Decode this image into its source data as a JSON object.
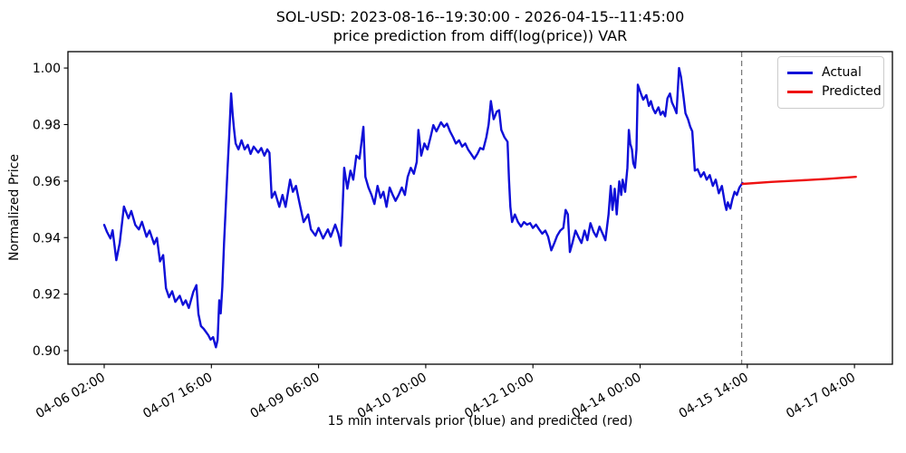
{
  "chart_data": {
    "type": "line",
    "title_line1": "SOL-USD: 2023-08-16--19:30:00 - 2026-04-15--11:45:00",
    "title_line2": "price prediction from diff(log(price)) VAR",
    "xlabel": "15 min intervals prior (blue) and predicted (red)",
    "ylabel": "Normalized Price",
    "grid": false,
    "legend_position": "upper right",
    "x_unit": "hours since 04-06 02:00 (data sampled at 15 min intervals)",
    "xlim_hours": [
      -12.85,
      279.45
    ],
    "ylim": [
      0.8952,
      1.0058
    ],
    "x_ticks": [
      {
        "hours": 0,
        "label": "04-06 02:00"
      },
      {
        "hours": 38,
        "label": "04-07 16:00"
      },
      {
        "hours": 76,
        "label": "04-09 06:00"
      },
      {
        "hours": 114,
        "label": "04-10 20:00"
      },
      {
        "hours": 152,
        "label": "04-12 10:00"
      },
      {
        "hours": 190,
        "label": "04-14 00:00"
      },
      {
        "hours": 228,
        "label": "04-15 14:00"
      },
      {
        "hours": 266,
        "label": "04-17 04:00"
      }
    ],
    "y_ticks": [
      {
        "value": 0.9,
        "label": "0.90"
      },
      {
        "value": 0.92,
        "label": "0.92"
      },
      {
        "value": 0.94,
        "label": "0.94"
      },
      {
        "value": 0.96,
        "label": "0.96"
      },
      {
        "value": 0.98,
        "label": "0.98"
      },
      {
        "value": 1.0,
        "label": "1.00"
      }
    ],
    "vline": {
      "hours": 226.0,
      "color": "#7a7a7a",
      "style": "dashed",
      "meaning": "prediction start 04-15 11:45"
    },
    "series": [
      {
        "name": "Actual",
        "color": "#0f0fd8",
        "points": [
          [
            0,
            0.9445
          ],
          [
            1,
            0.942
          ],
          [
            2.2,
            0.9397
          ],
          [
            3,
            0.9426
          ],
          [
            4.3,
            0.932
          ],
          [
            5.5,
            0.938
          ],
          [
            7,
            0.951
          ],
          [
            8.6,
            0.9468
          ],
          [
            9.6,
            0.9494
          ],
          [
            11,
            0.9445
          ],
          [
            12.3,
            0.9429
          ],
          [
            13.4,
            0.9456
          ],
          [
            15,
            0.9403
          ],
          [
            16.1,
            0.9425
          ],
          [
            17.7,
            0.9377
          ],
          [
            18.7,
            0.9399
          ],
          [
            19.8,
            0.9316
          ],
          [
            20.9,
            0.9338
          ],
          [
            21.9,
            0.9221
          ],
          [
            23,
            0.9189
          ],
          [
            24.1,
            0.921
          ],
          [
            25.2,
            0.9173
          ],
          [
            26.8,
            0.9194
          ],
          [
            27.9,
            0.9162
          ],
          [
            28.9,
            0.9178
          ],
          [
            30,
            0.9151
          ],
          [
            31.6,
            0.9208
          ],
          [
            32.7,
            0.9232
          ],
          [
            33.4,
            0.913
          ],
          [
            34.3,
            0.9087
          ],
          [
            35.3,
            0.9077
          ],
          [
            36.9,
            0.9055
          ],
          [
            37.7,
            0.9039
          ],
          [
            38.6,
            0.9048
          ],
          [
            39.1,
            0.903
          ],
          [
            39.6,
            0.9012
          ],
          [
            40.2,
            0.9038
          ],
          [
            40.8,
            0.9178
          ],
          [
            41.3,
            0.9132
          ],
          [
            41.9,
            0.9225
          ],
          [
            42.5,
            0.938
          ],
          [
            43.1,
            0.951
          ],
          [
            43.7,
            0.964
          ],
          [
            44.3,
            0.9755
          ],
          [
            45,
            0.991
          ],
          [
            45.5,
            0.984
          ],
          [
            46,
            0.9787
          ],
          [
            46.6,
            0.9733
          ],
          [
            47.6,
            0.9712
          ],
          [
            48.7,
            0.9744
          ],
          [
            49.8,
            0.9712
          ],
          [
            50.9,
            0.9728
          ],
          [
            51.9,
            0.9696
          ],
          [
            53,
            0.9722
          ],
          [
            54.6,
            0.9701
          ],
          [
            55.7,
            0.9717
          ],
          [
            56.8,
            0.969
          ],
          [
            57.8,
            0.9712
          ],
          [
            58.6,
            0.97
          ],
          [
            59.4,
            0.9541
          ],
          [
            60.5,
            0.9562
          ],
          [
            62.1,
            0.9509
          ],
          [
            63.2,
            0.9551
          ],
          [
            64.3,
            0.9509
          ],
          [
            65.9,
            0.9605
          ],
          [
            66.9,
            0.9562
          ],
          [
            68,
            0.9583
          ],
          [
            69.1,
            0.953
          ],
          [
            70.7,
            0.9455
          ],
          [
            72.3,
            0.9482
          ],
          [
            73.3,
            0.9429
          ],
          [
            74.9,
            0.9407
          ],
          [
            76,
            0.9434
          ],
          [
            77.6,
            0.9397
          ],
          [
            79.3,
            0.9429
          ],
          [
            80.3,
            0.9403
          ],
          [
            81.9,
            0.9446
          ],
          [
            83,
            0.9414
          ],
          [
            83.9,
            0.9371
          ],
          [
            84.5,
            0.95
          ],
          [
            85.1,
            0.9647
          ],
          [
            86.2,
            0.9573
          ],
          [
            87.3,
            0.9637
          ],
          [
            88.3,
            0.9605
          ],
          [
            89.4,
            0.969
          ],
          [
            90.5,
            0.9679
          ],
          [
            91.9,
            0.9792
          ],
          [
            92.6,
            0.9615
          ],
          [
            93.7,
            0.9577
          ],
          [
            94.8,
            0.9551
          ],
          [
            95.8,
            0.9519
          ],
          [
            96.9,
            0.9583
          ],
          [
            98,
            0.9541
          ],
          [
            99,
            0.9562
          ],
          [
            100.1,
            0.9509
          ],
          [
            101.2,
            0.9577
          ],
          [
            102.3,
            0.9551
          ],
          [
            103.3,
            0.953
          ],
          [
            104.4,
            0.9551
          ],
          [
            105.5,
            0.9577
          ],
          [
            106.6,
            0.9551
          ],
          [
            107.6,
            0.9615
          ],
          [
            108.7,
            0.9647
          ],
          [
            109.8,
            0.9626
          ],
          [
            110.8,
            0.9668
          ],
          [
            111.4,
            0.9781
          ],
          [
            112.4,
            0.969
          ],
          [
            113.5,
            0.9733
          ],
          [
            114.6,
            0.9712
          ],
          [
            115.7,
            0.9755
          ],
          [
            116.7,
            0.9798
          ],
          [
            117.8,
            0.9776
          ],
          [
            119.4,
            0.9808
          ],
          [
            120.5,
            0.9792
          ],
          [
            121.5,
            0.9803
          ],
          [
            122.6,
            0.9776
          ],
          [
            123.7,
            0.9755
          ],
          [
            124.7,
            0.9733
          ],
          [
            125.8,
            0.9744
          ],
          [
            126.9,
            0.9722
          ],
          [
            128,
            0.9733
          ],
          [
            129,
            0.9712
          ],
          [
            130.1,
            0.9696
          ],
          [
            131.2,
            0.9679
          ],
          [
            132.3,
            0.9696
          ],
          [
            133.3,
            0.9717
          ],
          [
            134.4,
            0.9712
          ],
          [
            135.5,
            0.9755
          ],
          [
            136.3,
            0.98
          ],
          [
            137.1,
            0.9883
          ],
          [
            138.1,
            0.9819
          ],
          [
            139.2,
            0.9846
          ],
          [
            140,
            0.9851
          ],
          [
            140.8,
            0.9781
          ],
          [
            141.9,
            0.9755
          ],
          [
            143,
            0.9739
          ],
          [
            143.5,
            0.9605
          ],
          [
            144,
            0.9509
          ],
          [
            144.6,
            0.9455
          ],
          [
            145.6,
            0.9482
          ],
          [
            146.7,
            0.9455
          ],
          [
            147.8,
            0.9439
          ],
          [
            148.8,
            0.9455
          ],
          [
            149.9,
            0.9446
          ],
          [
            151,
            0.9451
          ],
          [
            152,
            0.9434
          ],
          [
            153.1,
            0.9446
          ],
          [
            154.2,
            0.9429
          ],
          [
            155.3,
            0.9414
          ],
          [
            156.4,
            0.9425
          ],
          [
            157.4,
            0.9403
          ],
          [
            158.5,
            0.9355
          ],
          [
            159.6,
            0.9381
          ],
          [
            160.6,
            0.9407
          ],
          [
            161.7,
            0.9425
          ],
          [
            162.8,
            0.9434
          ],
          [
            163.6,
            0.9498
          ],
          [
            164.4,
            0.9482
          ],
          [
            165.1,
            0.9349
          ],
          [
            166,
            0.9381
          ],
          [
            167.1,
            0.9425
          ],
          [
            168.1,
            0.9403
          ],
          [
            169.2,
            0.9381
          ],
          [
            170.3,
            0.9425
          ],
          [
            171.3,
            0.9391
          ],
          [
            172.4,
            0.9451
          ],
          [
            173.5,
            0.942
          ],
          [
            174.5,
            0.9403
          ],
          [
            175.6,
            0.9439
          ],
          [
            176.7,
            0.9414
          ],
          [
            177.7,
            0.9391
          ],
          [
            178.8,
            0.9482
          ],
          [
            179.6,
            0.9583
          ],
          [
            180.2,
            0.9498
          ],
          [
            181,
            0.9573
          ],
          [
            181.7,
            0.9482
          ],
          [
            182.6,
            0.9599
          ],
          [
            183.3,
            0.9551
          ],
          [
            183.8,
            0.9605
          ],
          [
            184.7,
            0.9562
          ],
          [
            185.5,
            0.9647
          ],
          [
            186,
            0.9781
          ],
          [
            186.5,
            0.9733
          ],
          [
            187.1,
            0.9712
          ],
          [
            187.6,
            0.9663
          ],
          [
            188.2,
            0.9647
          ],
          [
            188.7,
            0.9712
          ],
          [
            189.2,
            0.9941
          ],
          [
            190.1,
            0.9915
          ],
          [
            191.1,
            0.9888
          ],
          [
            192.2,
            0.9904
          ],
          [
            193.1,
            0.9866
          ],
          [
            193.8,
            0.9883
          ],
          [
            194.6,
            0.9856
          ],
          [
            195.4,
            0.984
          ],
          [
            196.5,
            0.9861
          ],
          [
            197.3,
            0.9835
          ],
          [
            198.1,
            0.9846
          ],
          [
            198.9,
            0.9829
          ],
          [
            199.7,
            0.9893
          ],
          [
            200.6,
            0.991
          ],
          [
            201.3,
            0.9878
          ],
          [
            202.1,
            0.9861
          ],
          [
            202.9,
            0.984
          ],
          [
            203.8,
            1.0
          ],
          [
            204.5,
            0.9968
          ],
          [
            205.3,
            0.9904
          ],
          [
            206.1,
            0.984
          ],
          [
            207,
            0.9819
          ],
          [
            207.8,
            0.9792
          ],
          [
            208.5,
            0.9776
          ],
          [
            209.4,
            0.9637
          ],
          [
            210.4,
            0.9642
          ],
          [
            211.5,
            0.9615
          ],
          [
            212.6,
            0.9631
          ],
          [
            213.6,
            0.9605
          ],
          [
            214.7,
            0.9621
          ],
          [
            215.8,
            0.9583
          ],
          [
            216.8,
            0.9605
          ],
          [
            217.9,
            0.9557
          ],
          [
            219,
            0.9583
          ],
          [
            220.1,
            0.9519
          ],
          [
            220.6,
            0.9498
          ],
          [
            221.1,
            0.9525
          ],
          [
            222,
            0.9503
          ],
          [
            222.7,
            0.9535
          ],
          [
            223.5,
            0.9562
          ],
          [
            224.3,
            0.9551
          ],
          [
            225.2,
            0.9577
          ],
          [
            226.3,
            0.9593
          ]
        ]
      },
      {
        "name": "Predicted",
        "color": "#ee1111",
        "points": [
          [
            226.3,
            0.959
          ],
          [
            236.4,
            0.9597
          ],
          [
            246.4,
            0.9602
          ],
          [
            256.4,
            0.9608
          ],
          [
            266.5,
            0.9615
          ]
        ]
      }
    ]
  }
}
